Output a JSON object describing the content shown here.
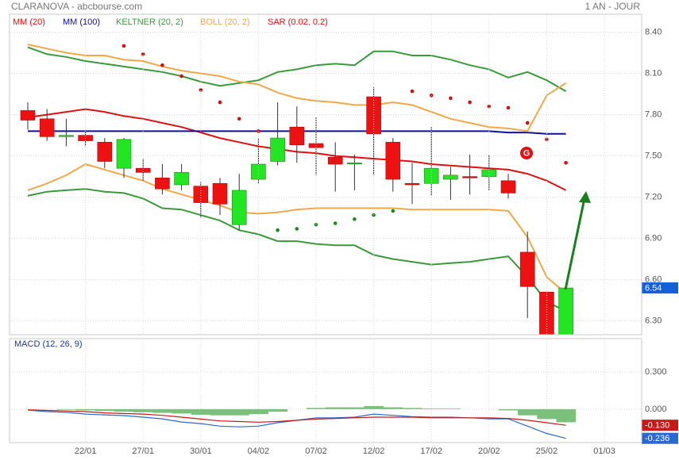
{
  "title": "CLARANOVA - abcbourse.com",
  "period": "1 AN - JOUR",
  "chart_data": [
    {
      "type": "candlestick",
      "ylim": [
        6.2,
        8.53
      ],
      "yticks": [
        {
          "value": 8.4,
          "label": "8.40"
        },
        {
          "value": 8.1,
          "label": "8.10"
        },
        {
          "value": 7.8,
          "label": "7.80"
        },
        {
          "value": 7.5,
          "label": "7.50"
        },
        {
          "value": 7.2,
          "label": "7.20"
        },
        {
          "value": 6.9,
          "label": "6.90"
        },
        {
          "value": 6.6,
          "label": "6.60"
        },
        {
          "value": 6.3,
          "label": "6.30"
        }
      ],
      "grid": true,
      "up_color": "#22e622",
      "down_color": "#ee1111",
      "open": [
        7.83,
        7.77,
        7.64,
        7.65,
        7.6,
        7.41,
        7.41,
        7.34,
        7.29,
        7.28,
        7.3,
        7.0,
        7.33,
        7.46,
        7.71,
        7.59,
        7.49,
        7.45,
        7.93,
        7.6,
        7.3,
        7.3,
        7.33,
        7.35,
        7.35,
        7.32,
        6.8,
        6.51,
        6.2,
        null,
        null
      ],
      "high": [
        7.89,
        7.84,
        7.77,
        7.68,
        7.63,
        7.63,
        7.48,
        7.44,
        7.44,
        7.31,
        7.34,
        7.37,
        7.63,
        7.89,
        7.86,
        7.78,
        7.6,
        7.51,
        8.0,
        7.63,
        7.45,
        7.71,
        7.42,
        7.51,
        7.51,
        7.37,
        6.95,
        6.51,
        6.54,
        null,
        null
      ],
      "low": [
        7.69,
        7.61,
        7.57,
        7.57,
        7.41,
        7.34,
        7.32,
        7.22,
        7.25,
        7.05,
        7.07,
        6.96,
        7.3,
        7.43,
        7.45,
        7.36,
        7.24,
        7.25,
        7.36,
        7.24,
        7.15,
        7.21,
        7.18,
        7.22,
        7.25,
        7.19,
        6.32,
        6.2,
        6.2,
        null,
        null
      ],
      "close": [
        7.76,
        7.64,
        7.65,
        7.61,
        7.46,
        7.62,
        7.38,
        7.26,
        7.38,
        7.16,
        7.15,
        7.25,
        7.44,
        7.63,
        7.58,
        7.56,
        7.44,
        7.45,
        7.66,
        7.33,
        7.29,
        7.41,
        7.36,
        7.34,
        7.4,
        7.23,
        6.55,
        6.2,
        6.54,
        null,
        null
      ],
      "last_label": {
        "value": 6.54,
        "label": "6.54"
      },
      "annotation": "G",
      "series": [
        {
          "name": "MM (20)",
          "color": "#e01010",
          "values": [
            7.78,
            7.8,
            7.82,
            7.84,
            7.82,
            7.79,
            7.77,
            7.74,
            7.71,
            7.67,
            7.63,
            7.6,
            7.57,
            7.55,
            7.53,
            7.52,
            7.5,
            7.49,
            7.48,
            7.47,
            7.46,
            7.44,
            7.43,
            7.42,
            7.41,
            7.4,
            7.37,
            7.32,
            7.25,
            null,
            null
          ]
        },
        {
          "name": "MM (100)",
          "color": "#1010a0",
          "values": [
            7.68,
            7.68,
            7.68,
            7.68,
            7.68,
            7.68,
            7.68,
            7.68,
            7.68,
            7.68,
            7.68,
            7.68,
            7.68,
            7.68,
            7.68,
            7.68,
            7.68,
            7.68,
            7.68,
            7.68,
            7.68,
            7.68,
            7.68,
            7.68,
            7.68,
            7.67,
            7.67,
            7.66,
            7.66,
            null,
            null
          ]
        },
        {
          "name": "KELTNER (20, 2)",
          "color": "#3a9a3a",
          "upper": [
            8.29,
            8.24,
            8.22,
            8.19,
            8.17,
            8.15,
            8.13,
            8.11,
            8.08,
            8.04,
            8.01,
            8.03,
            8.05,
            8.11,
            8.13,
            8.16,
            8.17,
            8.16,
            8.26,
            8.26,
            8.23,
            8.23,
            8.2,
            8.16,
            8.13,
            8.07,
            8.11,
            8.05,
            7.97,
            null,
            null
          ],
          "lower": [
            7.21,
            7.24,
            7.25,
            7.26,
            7.24,
            7.23,
            7.19,
            7.12,
            7.11,
            7.07,
            7.03,
            6.96,
            6.93,
            6.88,
            6.88,
            6.86,
            6.85,
            6.85,
            6.78,
            6.75,
            6.73,
            6.71,
            6.72,
            6.73,
            6.75,
            6.77,
            6.62,
            6.44,
            6.37,
            null,
            null
          ]
        },
        {
          "name": "BOLL (20, 2)",
          "color": "#f0a848",
          "upper": [
            8.31,
            8.28,
            8.25,
            8.23,
            8.23,
            8.2,
            8.19,
            8.15,
            8.12,
            8.1,
            8.08,
            8.04,
            8.02,
            7.96,
            7.92,
            7.9,
            7.89,
            7.87,
            7.87,
            7.89,
            7.87,
            7.82,
            7.77,
            7.74,
            7.71,
            7.7,
            7.68,
            7.94,
            8.03,
            null,
            null
          ],
          "lower": [
            7.25,
            7.3,
            7.36,
            7.44,
            7.4,
            7.36,
            7.32,
            7.26,
            7.22,
            7.18,
            7.14,
            7.09,
            7.08,
            7.09,
            7.11,
            7.12,
            7.12,
            7.12,
            7.12,
            7.12,
            7.11,
            7.11,
            7.11,
            7.11,
            7.11,
            7.1,
            6.91,
            6.62,
            6.5,
            null,
            null
          ]
        },
        {
          "name": "SAR (0.02, 0.2)",
          "color": "#e01010",
          "values": [
            null,
            null,
            null,
            null,
            null,
            8.3,
            8.24,
            8.16,
            8.08,
            7.98,
            7.89,
            7.77,
            7.68,
            6.96,
            6.97,
            7.0,
            7.01,
            7.04,
            7.07,
            7.1,
            7.97,
            7.94,
            7.92,
            7.89,
            7.86,
            7.85,
            7.74,
            7.62,
            7.45,
            null,
            null
          ],
          "point_colors": [
            null,
            null,
            null,
            null,
            null,
            "#d01010",
            "#d01010",
            "#d01010",
            "#d01010",
            "#d01010",
            "#d01010",
            "#d01010",
            "#d01010",
            "#1a8a1a",
            "#1a8a1a",
            "#1a8a1a",
            "#1a8a1a",
            "#1a8a1a",
            "#1a8a1a",
            "#1a8a1a",
            "#d01010",
            "#d01010",
            "#d01010",
            "#d01010",
            "#d01010",
            "#d01010",
            "#d01010",
            "#d01010",
            "#d01010",
            null,
            null
          ]
        }
      ]
    },
    {
      "type": "macd",
      "title": "MACD (12, 26, 9)",
      "ylim": [
        -0.27,
        0.57
      ],
      "yticks": [
        {
          "value": 0.3,
          "label": "0.300"
        },
        {
          "value": 0,
          "label": "0.000"
        }
      ],
      "grid": true,
      "categories": [
        null,
        null,
        null,
        "22/01",
        null,
        null,
        "27/01",
        null,
        null,
        "30/01",
        null,
        null,
        "04/02",
        null,
        null,
        "07/02",
        null,
        null,
        "12/02",
        null,
        null,
        "17/02",
        null,
        null,
        "20/02",
        null,
        null,
        "25/02",
        null,
        null,
        "01/03"
      ],
      "histogram": {
        "color": "#7cc07c",
        "values": [
          0.0,
          0.0,
          -0.005,
          -0.01,
          -0.015,
          -0.02,
          -0.025,
          -0.03,
          -0.035,
          -0.045,
          -0.05,
          -0.05,
          -0.04,
          -0.02,
          0.0,
          0.01,
          0.015,
          0.015,
          0.025,
          0.015,
          0.01,
          0.005,
          0.005,
          0.0,
          0.0,
          -0.01,
          -0.05,
          -0.08,
          -0.106,
          null,
          null
        ]
      },
      "series": [
        {
          "color": "#2a6ad0",
          "values": [
            -0.007,
            -0.02,
            -0.026,
            -0.04,
            -0.046,
            -0.052,
            -0.065,
            -0.078,
            -0.104,
            -0.117,
            -0.137,
            -0.143,
            -0.137,
            -0.11,
            -0.09,
            -0.07,
            -0.07,
            -0.065,
            -0.04,
            -0.05,
            -0.06,
            -0.065,
            -0.065,
            -0.07,
            -0.078,
            -0.078,
            -0.137,
            -0.196,
            -0.236,
            null,
            null
          ],
          "end_label": {
            "value": -0.236,
            "label": "-0.236"
          }
        },
        {
          "color": "#c81818",
          "values": [
            -0.005,
            -0.01,
            -0.015,
            -0.02,
            -0.03,
            -0.035,
            -0.04,
            -0.05,
            -0.065,
            -0.08,
            -0.095,
            -0.1,
            -0.105,
            -0.1,
            -0.09,
            -0.08,
            -0.075,
            -0.07,
            -0.065,
            -0.065,
            -0.065,
            -0.07,
            -0.07,
            -0.07,
            -0.07,
            -0.075,
            -0.09,
            -0.11,
            -0.13,
            null,
            null
          ],
          "end_label": {
            "value": -0.13,
            "label": "-0.130"
          }
        }
      ]
    }
  ]
}
